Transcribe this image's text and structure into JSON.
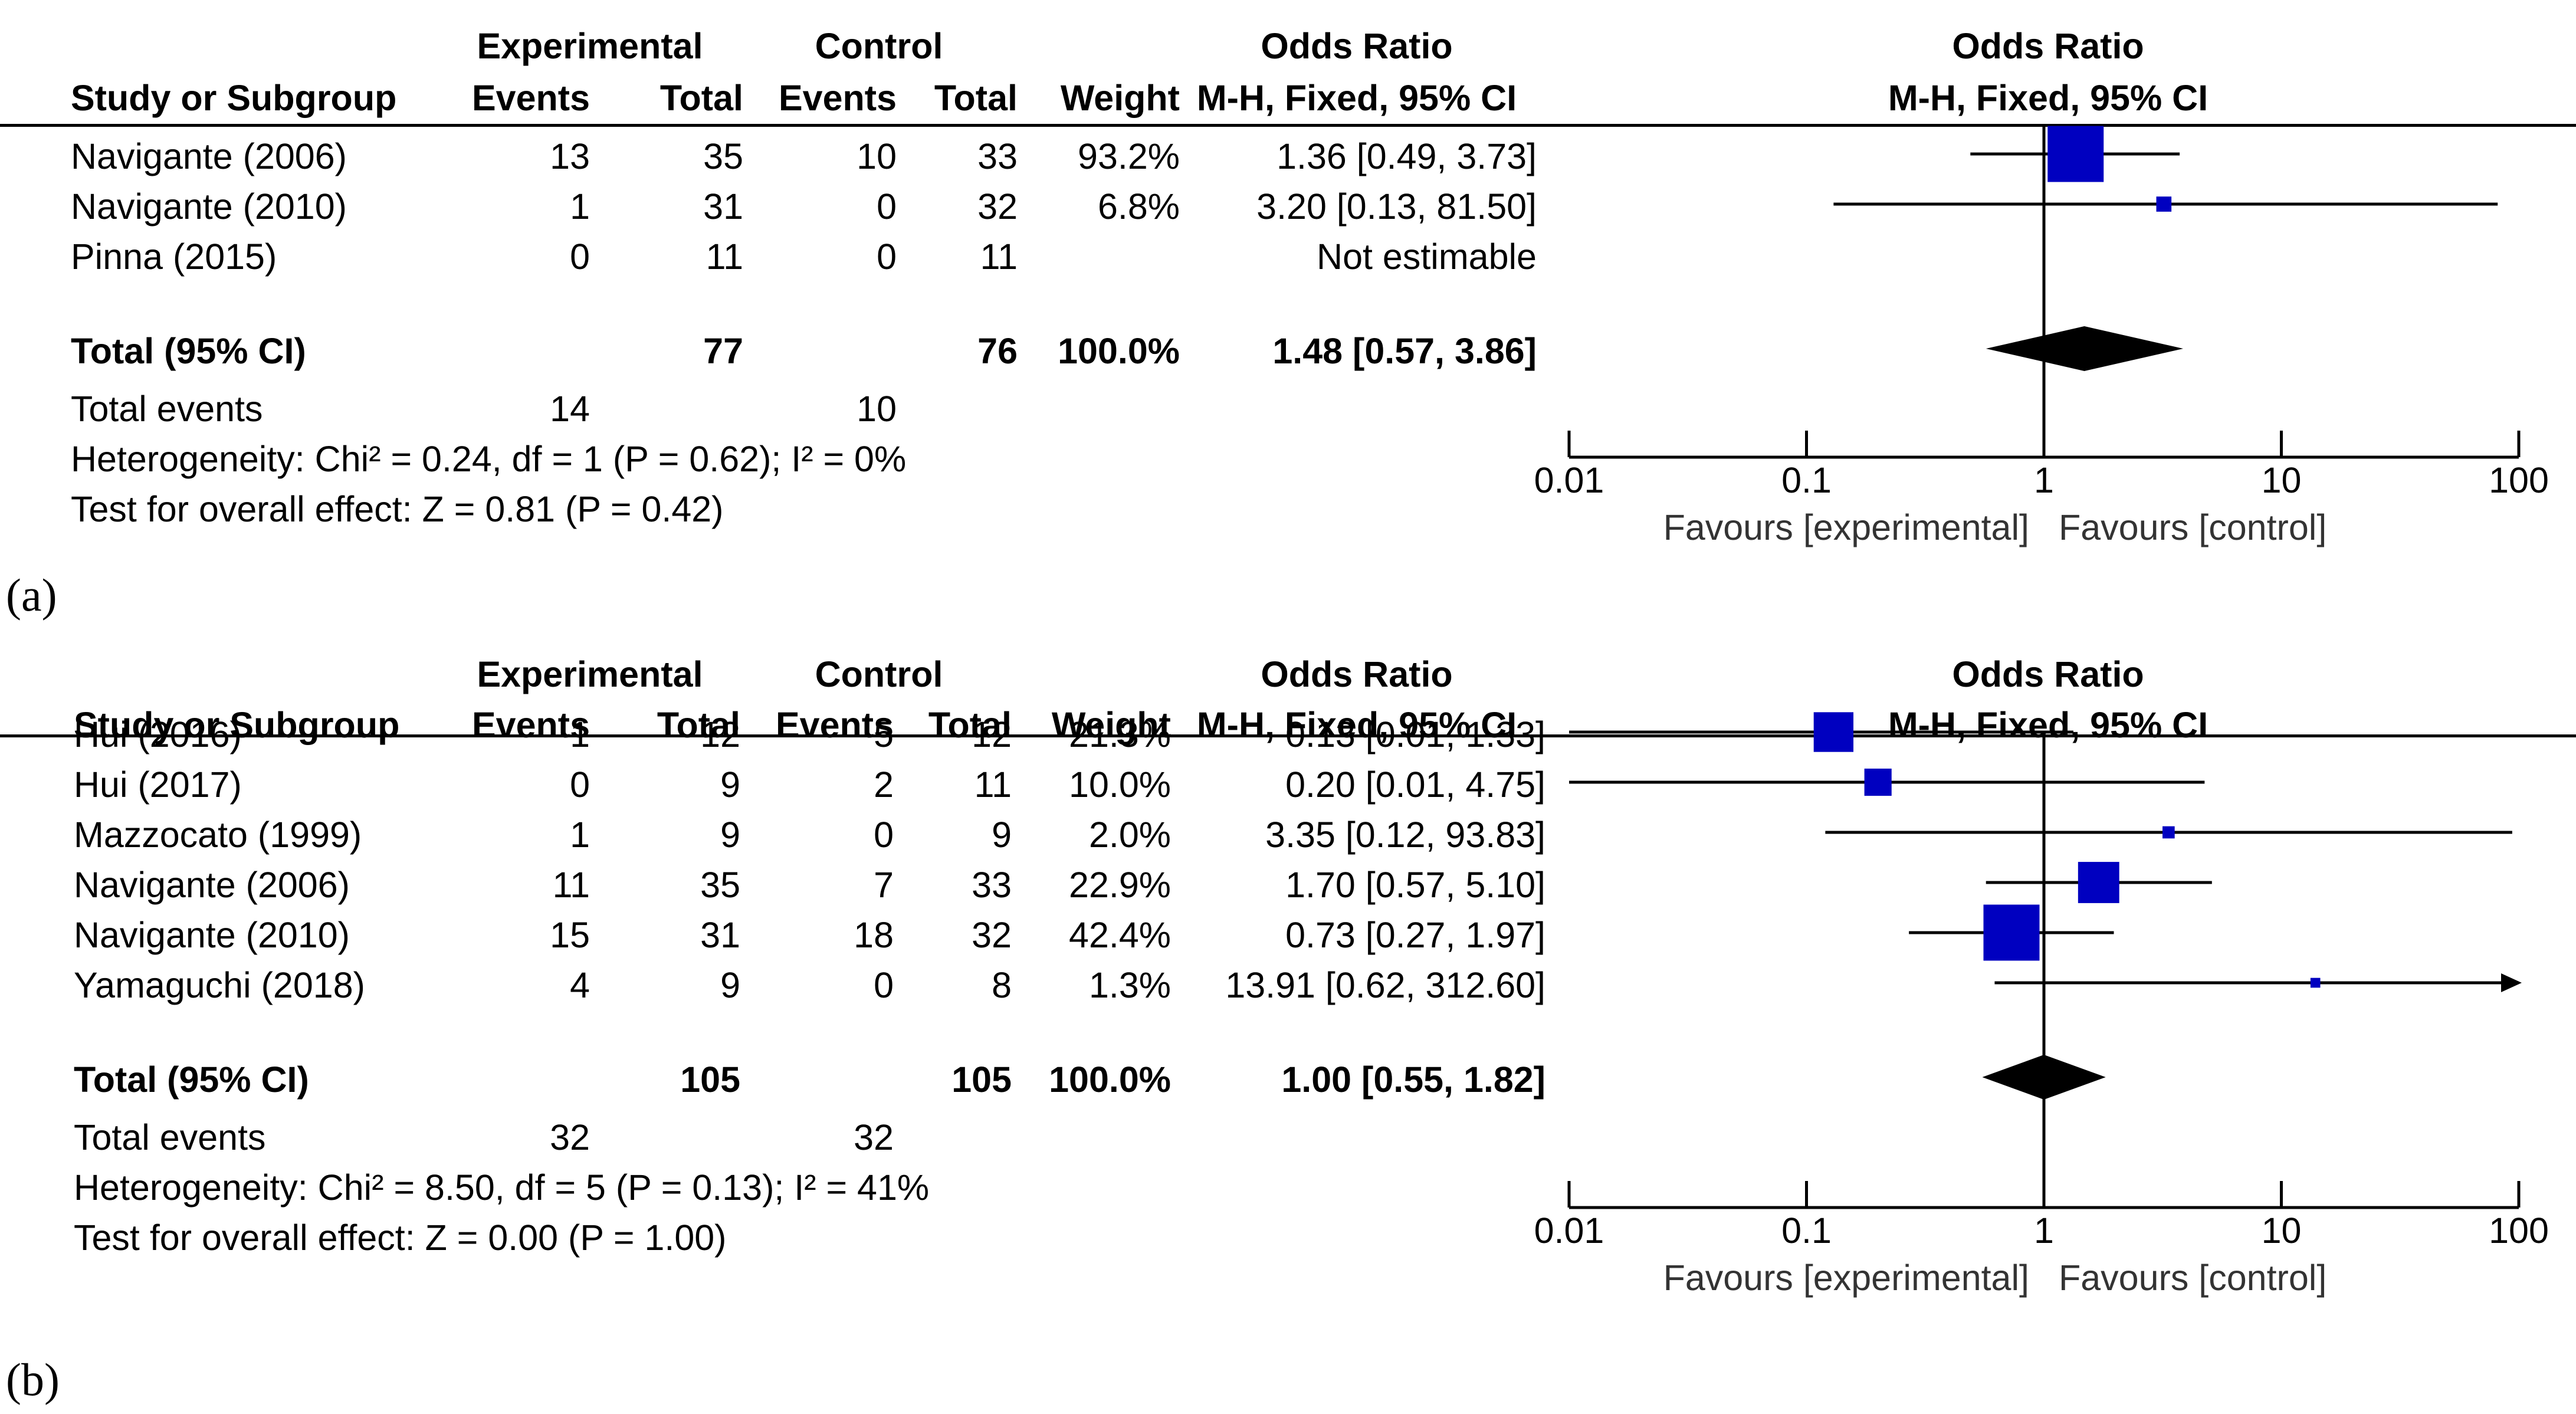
{
  "headers": {
    "experimental": "Experimental",
    "control": "Control",
    "odds_ratio": "Odds Ratio",
    "study_or_subgroup": "Study or Subgroup",
    "events": "Events",
    "total": "Total",
    "weight": "Weight",
    "method": "M-H, Fixed, 95% CI"
  },
  "axis_labels": {
    "favours_experimental": "Favours [experimental]",
    "favours_control": "Favours [control]"
  },
  "chart_data": [
    {
      "type": "forest",
      "panel_label": "(a)",
      "title": "Odds Ratio",
      "subtitle": "M-H, Fixed, 95% CI",
      "xscale": "log",
      "xlim": [
        0.01,
        100
      ],
      "ticks": [
        "0.01",
        "0.1",
        "1",
        "10",
        "100"
      ],
      "tick_values": [
        0.01,
        0.1,
        1,
        10,
        100
      ],
      "studies": [
        {
          "name": "Navigante (2006)",
          "exp_events": "13",
          "exp_total": "35",
          "ctl_events": "10",
          "ctl_total": "33",
          "weight": "93.2%",
          "or_text": "1.36 [0.49, 3.73]",
          "or": 1.36,
          "lo": 0.49,
          "hi": 3.73,
          "w": 93.2
        },
        {
          "name": "Navigante (2010)",
          "exp_events": "1",
          "exp_total": "31",
          "ctl_events": "0",
          "ctl_total": "32",
          "weight": "6.8%",
          "or_text": "3.20 [0.13, 81.50]",
          "or": 3.2,
          "lo": 0.13,
          "hi": 81.5,
          "w": 6.8
        },
        {
          "name": "Pinna (2015)",
          "exp_events": "0",
          "exp_total": "11",
          "ctl_events": "0",
          "ctl_total": "11",
          "weight": "",
          "or_text": "Not estimable",
          "or": null,
          "lo": null,
          "hi": null,
          "w": 0
        }
      ],
      "total": {
        "label": "Total (95% CI)",
        "exp_total": "77",
        "ctl_total": "76",
        "weight": "100.0%",
        "or_text": "1.48 [0.57, 3.86]",
        "or": 1.48,
        "lo": 0.57,
        "hi": 3.86
      },
      "total_events": {
        "label": "Total events",
        "exp": "14",
        "ctl": "10"
      },
      "heterogeneity": "Heterogeneity: Chi² = 0.24, df = 1 (P = 0.62); I² = 0%",
      "overall_effect": "Test for overall effect: Z = 0.81 (P = 0.42)"
    },
    {
      "type": "forest",
      "panel_label": "(b)",
      "title": "Odds Ratio",
      "subtitle": "M-H, Fixed, 95% CI",
      "xscale": "log",
      "xlim": [
        0.01,
        100
      ],
      "ticks": [
        "0.01",
        "0.1",
        "1",
        "10",
        "100"
      ],
      "tick_values": [
        0.01,
        0.1,
        1,
        10,
        100
      ],
      "studies": [
        {
          "name": "Hui (2016)",
          "exp_events": "1",
          "exp_total": "12",
          "ctl_events": "5",
          "ctl_total": "12",
          "weight": "21.3%",
          "or_text": "0.13 [0.01, 1.33]",
          "or": 0.13,
          "lo": 0.01,
          "hi": 1.33,
          "w": 21.3
        },
        {
          "name": "Hui (2017)",
          "exp_events": "0",
          "exp_total": "9",
          "ctl_events": "2",
          "ctl_total": "11",
          "weight": "10.0%",
          "or_text": "0.20 [0.01, 4.75]",
          "or": 0.2,
          "lo": 0.01,
          "hi": 4.75,
          "w": 10.0
        },
        {
          "name": "Mazzocato (1999)",
          "exp_events": "1",
          "exp_total": "9",
          "ctl_events": "0",
          "ctl_total": "9",
          "weight": "2.0%",
          "or_text": "3.35 [0.12, 93.83]",
          "or": 3.35,
          "lo": 0.12,
          "hi": 93.83,
          "w": 2.0
        },
        {
          "name": "Navigante (2006)",
          "exp_events": "11",
          "exp_total": "35",
          "ctl_events": "7",
          "ctl_total": "33",
          "weight": "22.9%",
          "or_text": "1.70 [0.57, 5.10]",
          "or": 1.7,
          "lo": 0.57,
          "hi": 5.1,
          "w": 22.9
        },
        {
          "name": "Navigante (2010)",
          "exp_events": "15",
          "exp_total": "31",
          "ctl_events": "18",
          "ctl_total": "32",
          "weight": "42.4%",
          "or_text": "0.73 [0.27, 1.97]",
          "or": 0.73,
          "lo": 0.27,
          "hi": 1.97,
          "w": 42.4
        },
        {
          "name": "Yamaguchi (2018)",
          "exp_events": "4",
          "exp_total": "9",
          "ctl_events": "0",
          "ctl_total": "8",
          "weight": "1.3%",
          "or_text": "13.91 [0.62, 312.60]",
          "or": 13.91,
          "lo": 0.62,
          "hi": 312.6,
          "w": 1.3
        }
      ],
      "total": {
        "label": "Total (95% CI)",
        "exp_total": "105",
        "ctl_total": "105",
        "weight": "100.0%",
        "or_text": "1.00 [0.55, 1.82]",
        "or": 1.0,
        "lo": 0.55,
        "hi": 1.82
      },
      "total_events": {
        "label": "Total events",
        "exp": "32",
        "ctl": "32"
      },
      "heterogeneity": "Heterogeneity: Chi² = 8.50, df = 5 (P = 0.13); I² = 41%",
      "overall_effect": "Test for overall effect: Z = 0.00 (P = 1.00)"
    }
  ]
}
